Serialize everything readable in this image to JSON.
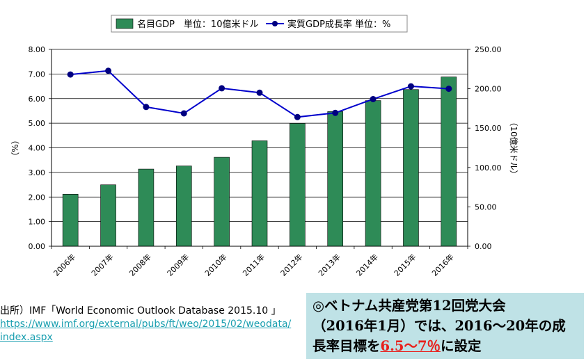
{
  "chart_data": {
    "type": "bar+line",
    "categories": [
      "2006年",
      "2007年",
      "2008年",
      "2009年",
      "2010年",
      "2011年",
      "2012年",
      "2013年",
      "2014年",
      "2015年",
      "2016年"
    ],
    "series": [
      {
        "name": "名目GDP　単位：10億米ドル",
        "type": "bar",
        "axis": "right",
        "color": "#2e8b57",
        "values": [
          66,
          78,
          98,
          102,
          113,
          134,
          156,
          171,
          185,
          199,
          215
        ]
      },
      {
        "name": "実質GDP成長率 単位：%",
        "type": "line",
        "axis": "left",
        "color": "#0000cc",
        "values": [
          6.98,
          7.13,
          5.66,
          5.4,
          6.42,
          6.24,
          5.25,
          5.42,
          5.98,
          6.5,
          6.4
        ]
      }
    ],
    "y_left": {
      "label": "（%）",
      "ticks": [
        "0.00",
        "1.00",
        "2.00",
        "3.00",
        "4.00",
        "5.00",
        "6.00",
        "7.00",
        "8.00"
      ],
      "range": [
        0,
        8
      ]
    },
    "y_right": {
      "label": "（10億米ドル）",
      "ticks": [
        "0.00",
        "50.00",
        "100.00",
        "150.00",
        "200.00",
        "250.00"
      ],
      "range": [
        0,
        250
      ]
    },
    "grid": true,
    "legend": "top"
  },
  "source": {
    "line1": "出所）IMF「World Economic Outlook Database 2015.10 」",
    "line2": "https://www.imf.org/external/pubs/ft/weo/2015/02/weodata/",
    "line3": "index.aspx"
  },
  "note": {
    "line1": "◎ベトナム共産党第12回党大会",
    "line2": "（2016年1月）では、2016～20年の成",
    "line3_prefix": "長率目標を",
    "line3_highlight": "6.5～7％",
    "line3_suffix": "に設定"
  }
}
